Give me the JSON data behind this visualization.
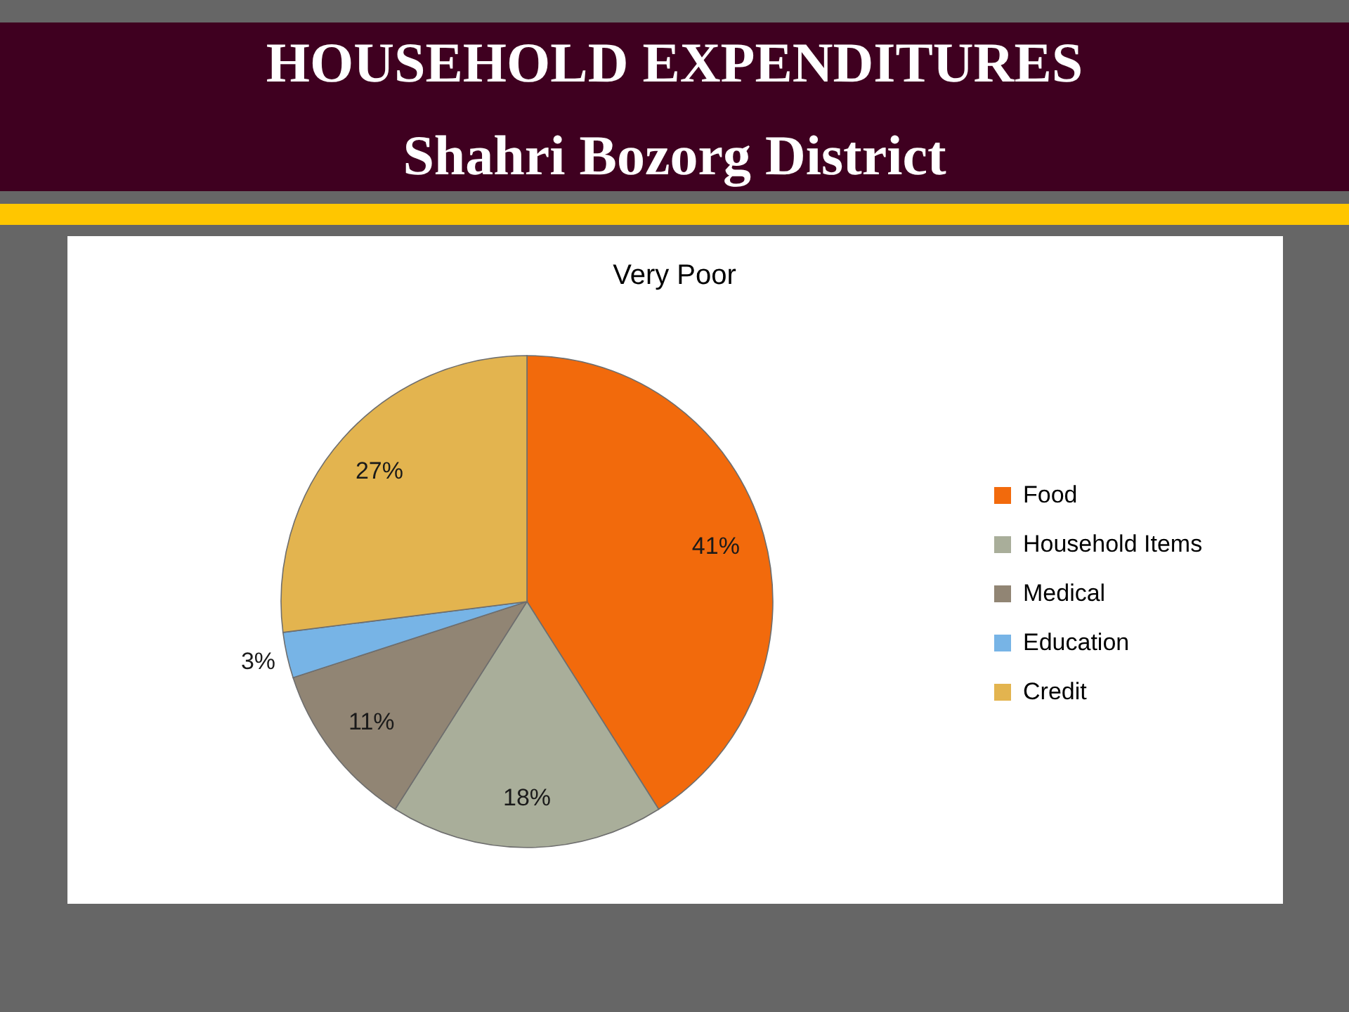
{
  "chart_data": {
    "type": "pie",
    "title": "HOUSEHOLD EXPENDITURES",
    "subtitle": "Shahri Bozorg District",
    "annotations": [
      "Very Poor"
    ],
    "categories": [
      "Food",
      "Household Items",
      "Medical",
      "Education",
      "Credit"
    ],
    "values": [
      41,
      18,
      11,
      3,
      27
    ],
    "colors": [
      "#f26a0c",
      "#a9ae9a",
      "#918574",
      "#77b4e6",
      "#e3b44f"
    ],
    "value_labels": [
      "41%",
      "18%",
      "11%",
      "3%",
      "27%"
    ],
    "legend": "right"
  }
}
